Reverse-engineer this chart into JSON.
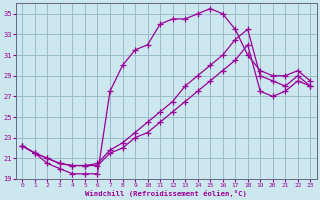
{
  "xlabel": "Windchill (Refroidissement éolien,°C)",
  "bg_color": "#cce8ee",
  "line_color": "#990099",
  "grid_color": "#99bbcc",
  "xlim": [
    -0.5,
    23.5
  ],
  "ylim": [
    19,
    36
  ],
  "yticks": [
    19,
    21,
    23,
    25,
    27,
    29,
    31,
    33,
    35
  ],
  "xticks": [
    0,
    1,
    2,
    3,
    4,
    5,
    6,
    7,
    8,
    9,
    10,
    11,
    12,
    13,
    14,
    15,
    16,
    17,
    18,
    19,
    20,
    21,
    22,
    23
  ],
  "line1_x": [
    0,
    1,
    2,
    3,
    4,
    5,
    6,
    7,
    8,
    9,
    10,
    11,
    12,
    13,
    14,
    15,
    16,
    17,
    18,
    19,
    20,
    21,
    22,
    23
  ],
  "line1_y": [
    22.2,
    21.5,
    20.5,
    20.0,
    19.5,
    19.5,
    19.5,
    27.5,
    30.0,
    31.5,
    32.0,
    34.0,
    34.5,
    34.5,
    35.0,
    35.5,
    35.0,
    33.5,
    31.0,
    29.5,
    29.0,
    29.0,
    29.5,
    28.5
  ],
  "line2_x": [
    0,
    1,
    2,
    3,
    4,
    5,
    6,
    7,
    8,
    9,
    10,
    11,
    12,
    13,
    14,
    15,
    16,
    17,
    18,
    19,
    20,
    21,
    22,
    23
  ],
  "line2_y": [
    22.2,
    21.5,
    21.0,
    20.5,
    20.3,
    20.3,
    20.5,
    21.8,
    22.5,
    23.5,
    24.5,
    25.5,
    26.5,
    28.0,
    29.0,
    30.0,
    31.0,
    32.5,
    33.5,
    29.0,
    28.5,
    28.0,
    29.0,
    28.0
  ],
  "line3_x": [
    0,
    1,
    2,
    3,
    4,
    5,
    6,
    7,
    8,
    9,
    10,
    11,
    12,
    13,
    14,
    15,
    16,
    17,
    18,
    19,
    20,
    21,
    22,
    23
  ],
  "line3_y": [
    22.2,
    21.5,
    21.0,
    20.5,
    20.3,
    20.3,
    20.3,
    21.5,
    22.0,
    23.0,
    23.5,
    24.5,
    25.5,
    26.5,
    27.5,
    28.5,
    29.5,
    30.5,
    32.0,
    27.5,
    27.0,
    27.5,
    28.5,
    28.0
  ]
}
